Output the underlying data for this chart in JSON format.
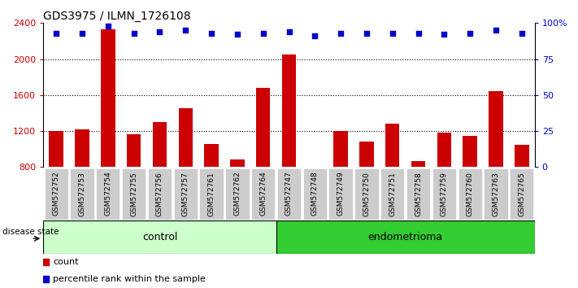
{
  "title": "GDS3975 / ILMN_1726108",
  "samples": [
    "GSM572752",
    "GSM572753",
    "GSM572754",
    "GSM572755",
    "GSM572756",
    "GSM572757",
    "GSM572761",
    "GSM572762",
    "GSM572764",
    "GSM572747",
    "GSM572748",
    "GSM572749",
    "GSM572750",
    "GSM572751",
    "GSM572758",
    "GSM572759",
    "GSM572760",
    "GSM572763",
    "GSM572765"
  ],
  "counts": [
    1200,
    1220,
    2330,
    1160,
    1300,
    1450,
    1060,
    880,
    1680,
    2050,
    780,
    1200,
    1080,
    1280,
    870,
    1180,
    1150,
    1640,
    1050
  ],
  "percentiles": [
    93,
    93,
    98,
    93,
    94,
    95,
    93,
    92,
    93,
    94,
    91,
    93,
    93,
    93,
    93,
    92,
    93,
    95,
    93
  ],
  "group_labels": [
    "control",
    "endometrioma"
  ],
  "group_sizes": [
    9,
    10
  ],
  "ylim_left": [
    800,
    2400
  ],
  "ylim_right": [
    0,
    100
  ],
  "yticks_left": [
    800,
    1200,
    1600,
    2000,
    2400
  ],
  "yticks_right": [
    0,
    25,
    50,
    75,
    100
  ],
  "yright_labels": [
    "0",
    "25",
    "50",
    "75",
    "100%"
  ],
  "bar_color": "#cc0000",
  "dot_color": "#0000cc",
  "control_bg_light": "#ccffcc",
  "control_bg": "#ccffcc",
  "endo_bg": "#33cc33",
  "tick_bg": "#cccccc",
  "legend_count_label": "count",
  "legend_pct_label": "percentile rank within the sample",
  "disease_state_label": "disease state",
  "grid_ticks": [
    1200,
    1600,
    2000
  ]
}
